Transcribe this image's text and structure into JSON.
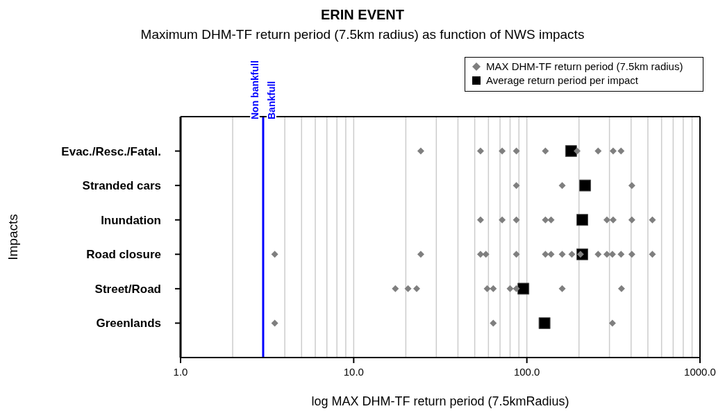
{
  "chart_data": {
    "type": "scatter",
    "title": "ERIN EVENT",
    "subtitle": "Maximum DHM-TF return period (7.5km radius) as function of NWS impacts",
    "xlabel": "log MAX DHM-TF return period (7.5kmRadius)",
    "ylabel": "Impacts",
    "orientation": "horizontal",
    "categories": [
      "Evac./Resc./Fatal.",
      "Stranded cars",
      "Inundation",
      "Road closure",
      "Street/Road",
      "Greenlands"
    ],
    "series": [
      {
        "name": "MAX DHM-TF return period (7.5km radius)",
        "color": "#7f7f7f",
        "marker": "diamond",
        "x": [
          "Evac./Resc./Fatal.",
          "Evac./Resc./Fatal.",
          "Evac./Resc./Fatal.",
          "Evac./Resc./Fatal.",
          "Evac./Resc./Fatal.",
          "Evac./Resc./Fatal.",
          "Evac./Resc./Fatal.",
          "Evac./Resc./Fatal.",
          "Evac./Resc./Fatal.",
          "Stranded cars",
          "Stranded cars",
          "Stranded cars",
          "Inundation",
          "Inundation",
          "Inundation",
          "Inundation",
          "Inundation",
          "Inundation",
          "Inundation",
          "Inundation",
          "Inundation",
          "Road closure",
          "Road closure",
          "Road closure",
          "Road closure",
          "Road closure",
          "Road closure",
          "Road closure",
          "Road closure",
          "Road closure",
          "Road closure",
          "Road closure",
          "Road closure",
          "Road closure",
          "Road closure",
          "Road closure",
          "Road closure",
          "Street/Road",
          "Street/Road",
          "Street/Road",
          "Street/Road",
          "Street/Road",
          "Street/Road",
          "Street/Road",
          "Street/Road",
          "Street/Road",
          "Greenlands",
          "Greenlands",
          "Greenlands"
        ],
        "values": [
          24.4,
          54,
          72,
          87,
          128,
          195,
          258,
          315,
          350,
          87,
          160,
          404,
          54,
          72,
          87,
          128,
          138,
          290,
          315,
          404,
          531,
          3.5,
          24.4,
          54,
          58,
          87,
          128,
          138,
          160,
          182,
          204,
          258,
          290,
          312,
          350,
          404,
          531,
          17.4,
          20.6,
          23.1,
          59,
          64,
          80,
          87,
          160,
          352,
          3.5,
          64,
          312
        ]
      },
      {
        "name": "Average return period per impact",
        "color": "#000000",
        "marker": "square",
        "values": [
          180,
          217,
          209,
          209,
          95.5,
          126.5
        ]
      }
    ],
    "xlim": [
      1,
      1000
    ],
    "log": "x",
    "xticks": [
      {
        "value": 1,
        "label": "1.0"
      },
      {
        "value": 2,
        "label": null
      },
      {
        "value": 3,
        "label": null
      },
      {
        "value": 4,
        "label": null
      },
      {
        "value": 5,
        "label": null
      },
      {
        "value": 6,
        "label": null
      },
      {
        "value": 7,
        "label": null
      },
      {
        "value": 8,
        "label": null
      },
      {
        "value": 9,
        "label": null
      },
      {
        "value": 10,
        "label": "10.0"
      },
      {
        "value": 20,
        "label": null
      },
      {
        "value": 30,
        "label": null
      },
      {
        "value": 40,
        "label": null
      },
      {
        "value": 50,
        "label": null
      },
      {
        "value": 60,
        "label": null
      },
      {
        "value": 70,
        "label": null
      },
      {
        "value": 80,
        "label": null
      },
      {
        "value": 90,
        "label": null
      },
      {
        "value": 100,
        "label": "100.0"
      },
      {
        "value": 200,
        "label": null
      },
      {
        "value": 300,
        "label": null
      },
      {
        "value": 400,
        "label": null
      },
      {
        "value": 500,
        "label": null
      },
      {
        "value": 600,
        "label": null
      },
      {
        "value": 700,
        "label": null
      },
      {
        "value": 800,
        "label": null
      },
      {
        "value": 900,
        "label": null
      },
      {
        "value": 1000,
        "label": "1000.0"
      }
    ],
    "grid": "x",
    "legend": "top right",
    "ref_lines": [
      {
        "axis": "x",
        "value": 3,
        "color": "#0000ff",
        "line_style": "solid"
      }
    ],
    "annotations": [
      "Non bankfull",
      "Bankfull"
    ]
  }
}
